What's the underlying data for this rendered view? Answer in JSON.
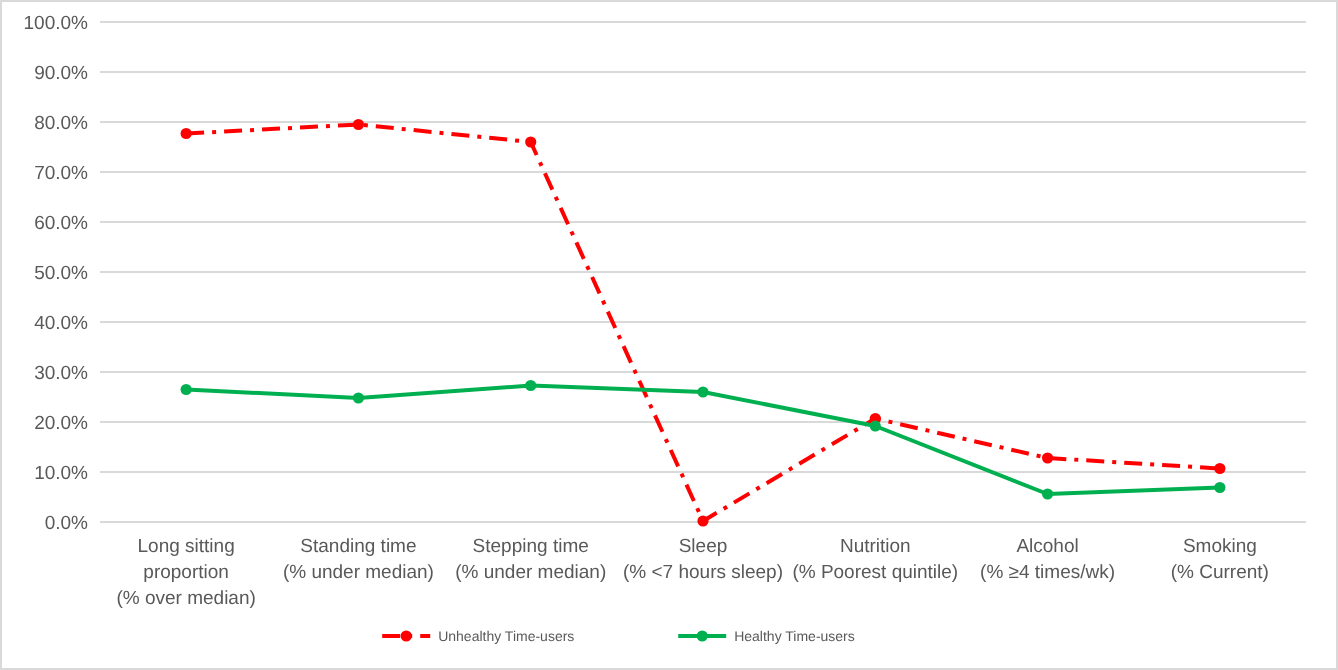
{
  "chart_data": {
    "type": "line",
    "categories": [
      "Long sitting\nproportion\n(% over median)",
      "Standing time\n(% under median)",
      "Stepping time\n(% under median)",
      "Sleep\n(% <7 hours sleep)",
      "Nutrition\n(% Poorest quintile)",
      "Alcohol\n(% ≥4 times/wk)",
      "Smoking\n(% Current)"
    ],
    "series": [
      {
        "name": "Unhealthy Time-users",
        "color": "#ff0000",
        "line_style": "dashed",
        "values": [
          77.7,
          79.5,
          76.0,
          0.2,
          20.7,
          12.8,
          10.7
        ]
      },
      {
        "name": "Healthy Time-users",
        "color": "#00b050",
        "line_style": "solid",
        "values": [
          26.5,
          24.8,
          27.3,
          26.0,
          19.2,
          5.6,
          6.9
        ]
      }
    ],
    "ylim": [
      0,
      100
    ],
    "yticks": [
      {
        "value": 0,
        "label": "0.0%"
      },
      {
        "value": 10,
        "label": "10.0%"
      },
      {
        "value": 20,
        "label": "20.0%"
      },
      {
        "value": 30,
        "label": "30.0%"
      },
      {
        "value": 40,
        "label": "40.0%"
      },
      {
        "value": 50,
        "label": "50.0%"
      },
      {
        "value": 60,
        "label": "60.0%"
      },
      {
        "value": 70,
        "label": "70.0%"
      },
      {
        "value": 80,
        "label": "80.0%"
      },
      {
        "value": 90,
        "label": "90.0%"
      },
      {
        "value": 100,
        "label": "100.0%"
      }
    ],
    "grid": "y",
    "legend": "bottom",
    "marker": "circle"
  }
}
